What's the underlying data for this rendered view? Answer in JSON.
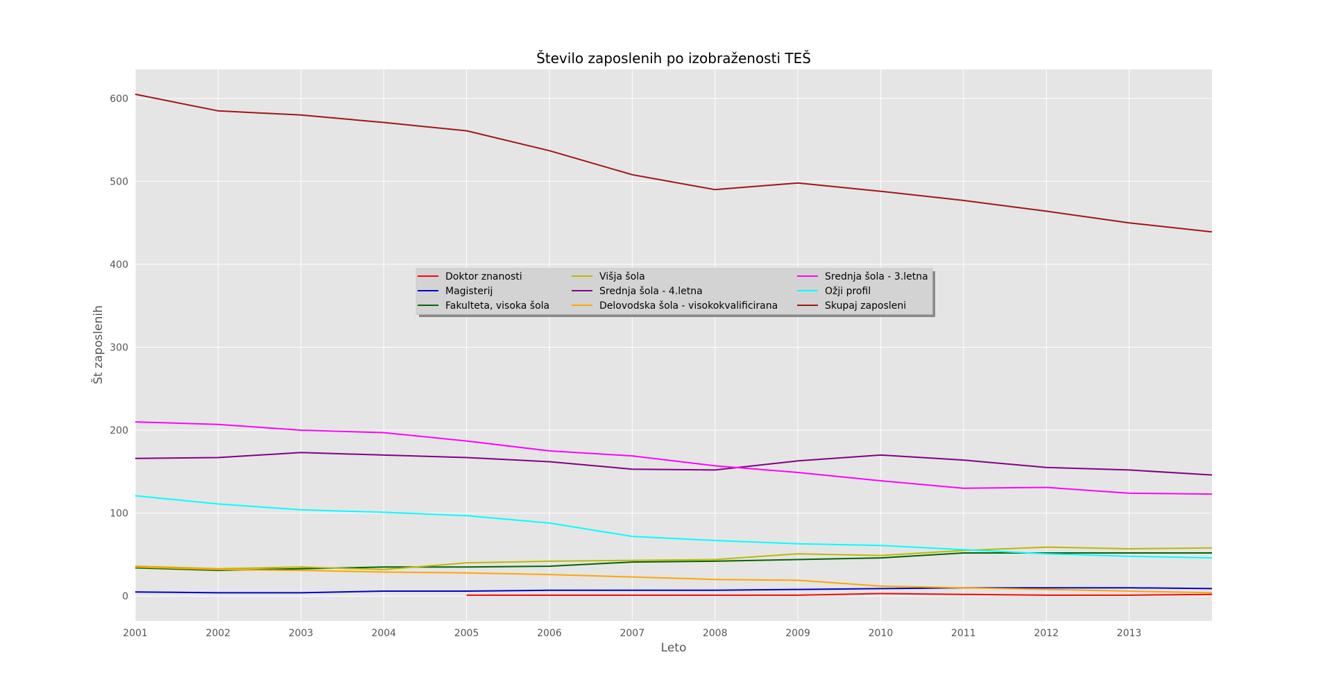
{
  "chart_data": {
    "type": "line",
    "title": "Število zaposlenih po izobraženosti TEŠ",
    "xlabel": "Leto",
    "ylabel": "Št zaposlenih",
    "x": [
      2001,
      2002,
      2003,
      2004,
      2005,
      2006,
      2007,
      2008,
      2009,
      2010,
      2011,
      2012,
      2013,
      2014
    ],
    "x_ticks": [
      "2001",
      "2002",
      "2003",
      "2004",
      "2005",
      "2006",
      "2007",
      "2008",
      "2009",
      "2010",
      "2011",
      "2012",
      "2013"
    ],
    "y_ticks": [
      "0",
      "100",
      "200",
      "300",
      "400",
      "500",
      "600"
    ],
    "xlim": [
      2001,
      2014
    ],
    "ylim": [
      -30,
      635
    ],
    "grid": true,
    "legend_position": "center",
    "legend_columns": 3,
    "series": [
      {
        "name": "Doktor znanosti",
        "color": "#ff0000",
        "values": [
          null,
          null,
          null,
          null,
          1,
          1,
          1,
          1,
          1,
          3,
          2,
          1,
          1,
          2
        ]
      },
      {
        "name": "Magisterij",
        "color": "#0000cc",
        "values": [
          5,
          4,
          4,
          6,
          6,
          7,
          7,
          7,
          8,
          9,
          10,
          10,
          10,
          9
        ]
      },
      {
        "name": "Fakulteta, visoka šola",
        "color": "#006400",
        "values": [
          34,
          31,
          33,
          35,
          35,
          36,
          41,
          42,
          44,
          46,
          52,
          52,
          52,
          52
        ]
      },
      {
        "name": "Višja šola",
        "color": "#bdb800",
        "values": [
          36,
          33,
          35,
          32,
          40,
          42,
          43,
          44,
          51,
          49,
          55,
          59,
          57,
          58
        ]
      },
      {
        "name": "Srednja šola - 4.letna",
        "color": "#800080",
        "values": [
          166,
          167,
          173,
          170,
          167,
          162,
          153,
          152,
          163,
          170,
          164,
          155,
          152,
          146
        ]
      },
      {
        "name": "Delovodska šola - visokokvalificirana",
        "color": "#ffa500",
        "values": [
          35,
          32,
          31,
          29,
          28,
          26,
          23,
          20,
          19,
          12,
          10,
          8,
          6,
          4
        ]
      },
      {
        "name": "Srednja šola - 3.letna",
        "color": "#ff00ff",
        "values": [
          210,
          207,
          200,
          197,
          187,
          175,
          169,
          157,
          149,
          139,
          130,
          131,
          124,
          123
        ]
      },
      {
        "name": "Ožji profil",
        "color": "#00ffff",
        "values": [
          121,
          111,
          104,
          101,
          97,
          88,
          72,
          67,
          63,
          61,
          56,
          51,
          48,
          46
        ]
      },
      {
        "name": "Skupaj zaposleni",
        "color": "#a01414",
        "values": [
          605,
          585,
          580,
          571,
          561,
          537,
          508,
          490,
          498,
          488,
          477,
          464,
          450,
          439
        ]
      }
    ]
  }
}
